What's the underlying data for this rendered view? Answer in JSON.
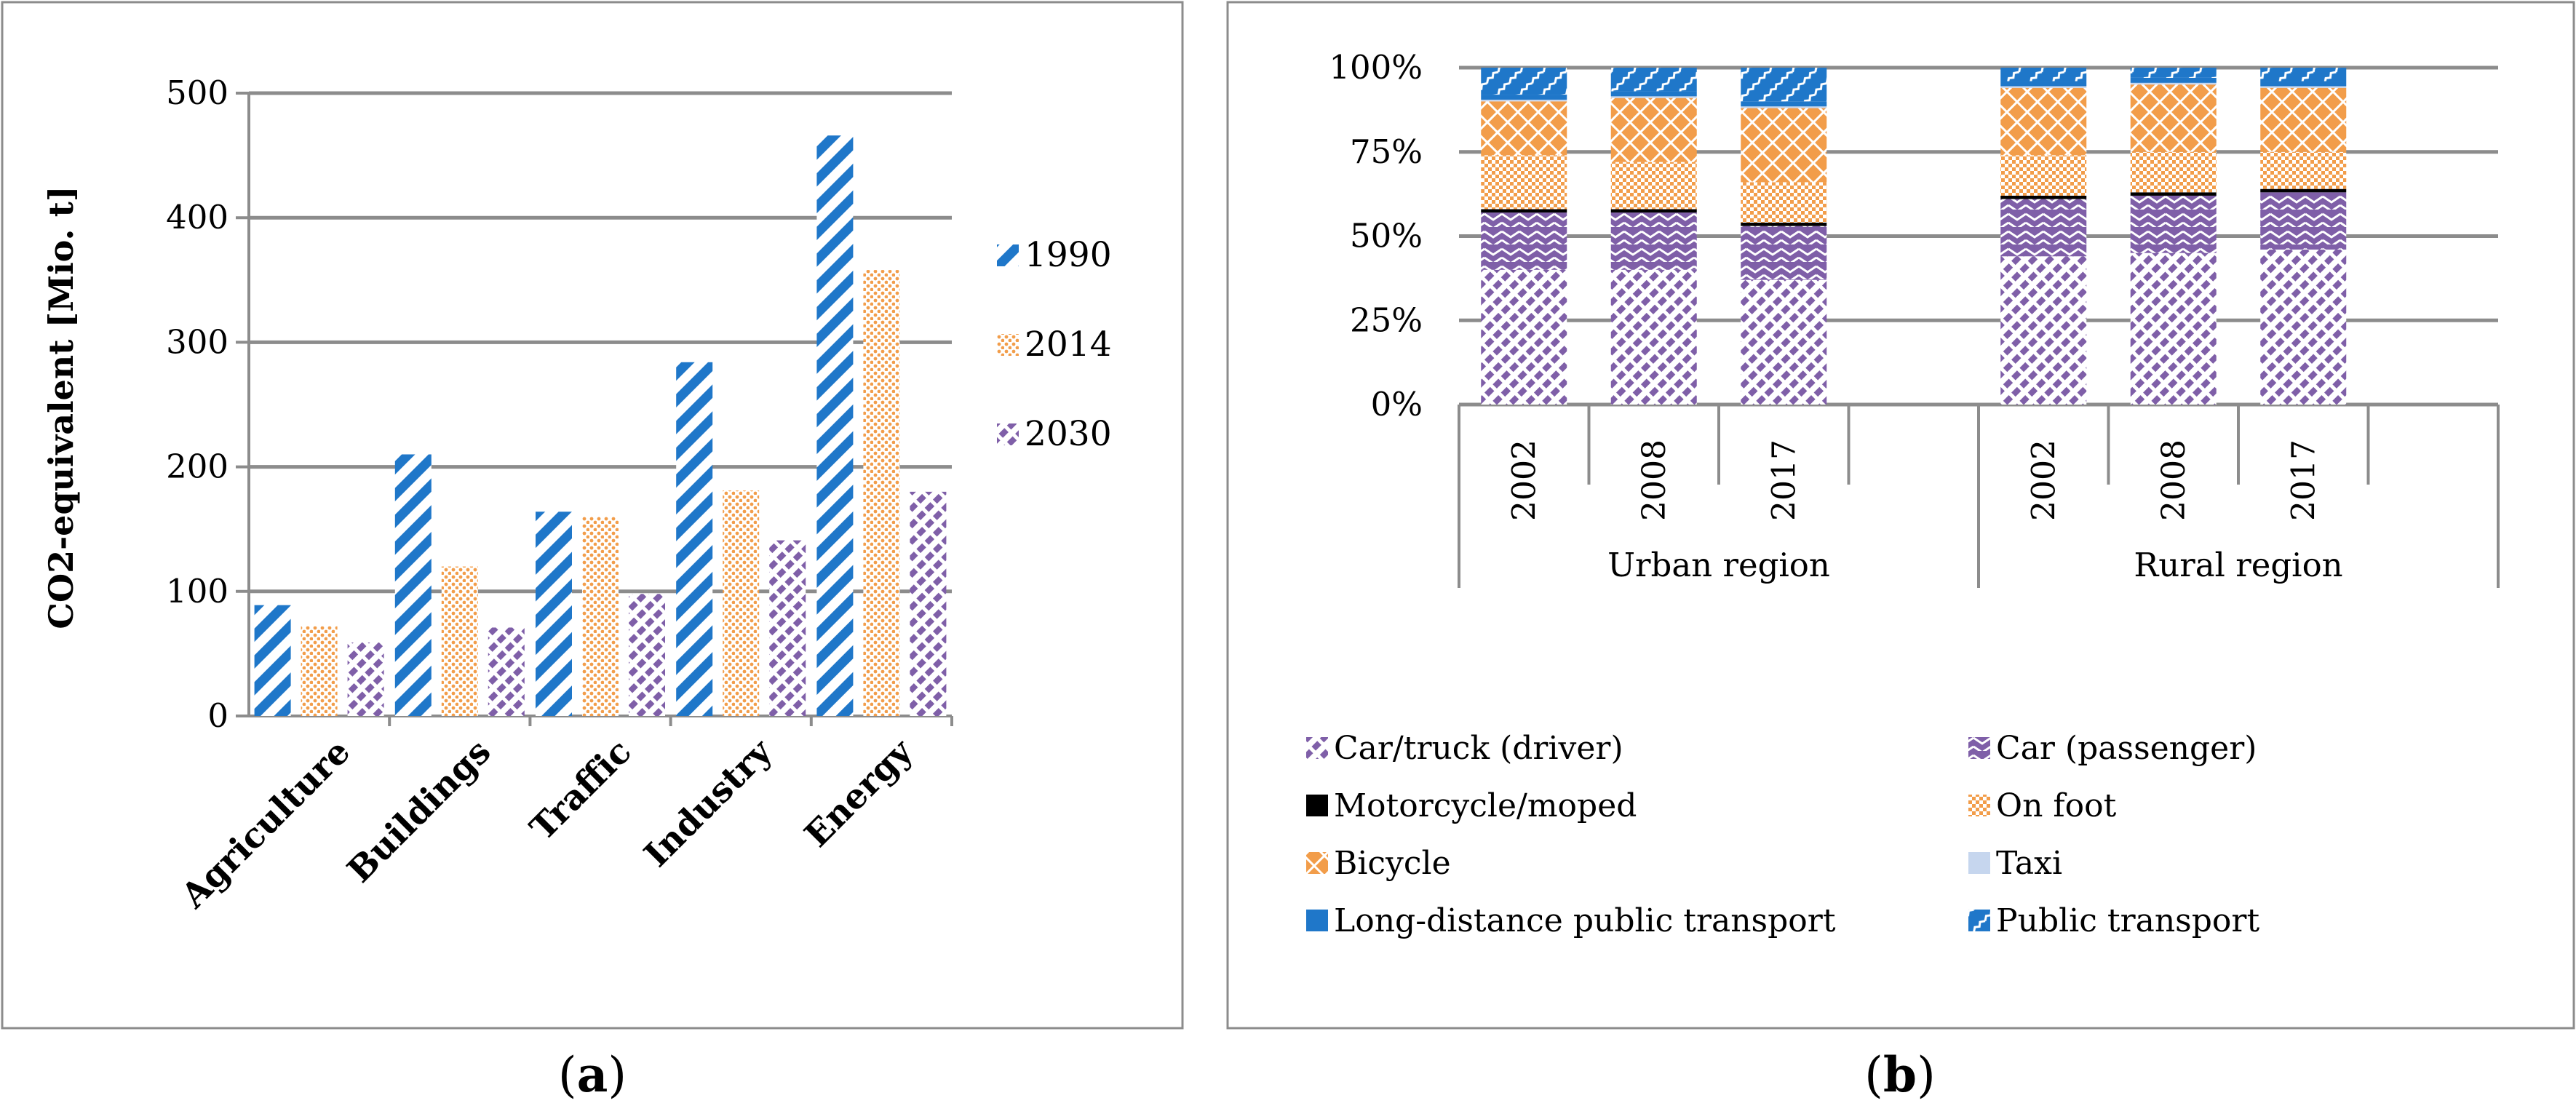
{
  "panel_labels": [
    "a",
    "b"
  ],
  "chart_data": [
    {
      "type": "bar",
      "ylabel": "CO2-equivalent [Mio. t]",
      "xlabel": "",
      "ylim": [
        0,
        500
      ],
      "yticks": [
        0,
        100,
        200,
        300,
        400,
        500
      ],
      "ytick_labels": [
        "0",
        "100",
        "200",
        "300",
        "400",
        "500"
      ],
      "grid": true,
      "legend_position": "right",
      "categories": [
        "Agriculture",
        "Buildings",
        "Traffic",
        "Industry",
        "Energy"
      ],
      "series": [
        {
          "name": "1990",
          "values": [
            89,
            210,
            164,
            284,
            466
          ],
          "color": "#1f77c9",
          "pattern": "wide-diagonal"
        },
        {
          "name": "2014",
          "values": [
            72,
            120,
            160,
            181,
            358
          ],
          "color": "#f29d4a",
          "pattern": "dots"
        },
        {
          "name": "2030",
          "values": [
            59,
            71,
            98,
            141,
            180
          ],
          "color": "#7f5fa8",
          "pattern": "dashed-diagonal"
        }
      ]
    },
    {
      "type": "bar",
      "stacked": true,
      "ylim": [
        0,
        100
      ],
      "yticks": [
        0,
        25,
        50,
        75,
        100
      ],
      "ytick_labels": [
        "0%",
        "25%",
        "50%",
        "75%",
        "100%"
      ],
      "grid": true,
      "legend_position": "bottom",
      "groups": [
        {
          "name": "Urban region",
          "years": [
            "2002",
            "2008",
            "2017"
          ]
        },
        {
          "name": "Rural region",
          "years": [
            "2002",
            "2008",
            "2017"
          ]
        }
      ],
      "series": [
        {
          "name": "Car/truck (driver)",
          "values": [
            40,
            40,
            37,
            44,
            45,
            46
          ],
          "color": "#7f5fa8",
          "pattern": "dashed-diagonal"
        },
        {
          "name": "Car (passenger)",
          "values": [
            17,
            17,
            16,
            17,
            17,
            17
          ],
          "color": "#7f5fa8",
          "pattern": "zigzag"
        },
        {
          "name": "Motorcycle/moped",
          "values": [
            1,
            1,
            1,
            1,
            1,
            1
          ],
          "color": "#000000",
          "pattern": "solid"
        },
        {
          "name": "On foot",
          "values": [
            16,
            14,
            12,
            12,
            12,
            11
          ],
          "color": "#f29d4a",
          "pattern": "checker"
        },
        {
          "name": "Bicycle",
          "values": [
            16,
            19,
            22,
            20,
            20,
            19
          ],
          "color": "#f29d4a",
          "pattern": "lattice"
        },
        {
          "name": "Taxi",
          "values": [
            0.5,
            0.5,
            0.5,
            0.5,
            0.5,
            0.5
          ],
          "color": "#c6d6ee",
          "pattern": "solid"
        },
        {
          "name": "Long-distance public transport",
          "values": [
            1.5,
            1.5,
            1.5,
            1.5,
            1.5,
            1.5
          ],
          "color": "#1f77c9",
          "pattern": "solid"
        },
        {
          "name": "Public transport",
          "values": [
            8,
            7,
            10,
            4,
            3,
            4
          ],
          "color": "#1f77c9",
          "pattern": "diag-zigzag"
        }
      ]
    }
  ]
}
